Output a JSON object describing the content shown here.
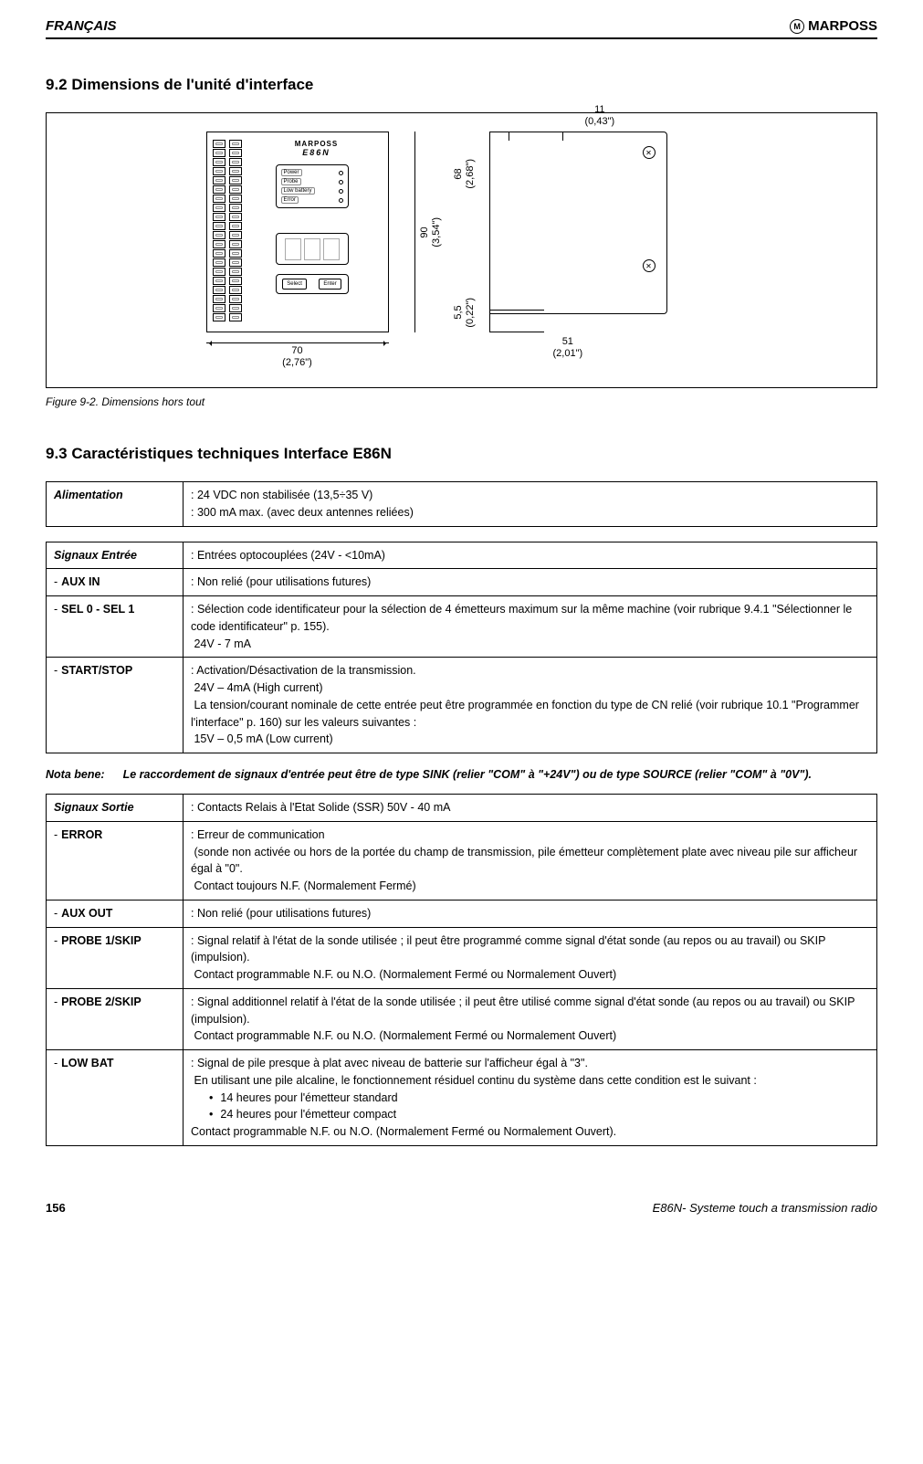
{
  "header": {
    "lang": "FRANÇAIS",
    "brand": "MARPOSS"
  },
  "section92": {
    "title": "9.2 Dimensions de l'unité d'interface",
    "caption": "Figure 9-2. Dimensions hors tout",
    "device_brand": "MARPOSS",
    "device_model": "E86N",
    "status_rows": [
      "Power",
      "Probe",
      "Low battery",
      "Error"
    ],
    "buttons": [
      "Select",
      "Enter"
    ],
    "dims": {
      "width": "70",
      "width_in": "(2,76\")",
      "height": "90",
      "height_in": "(3,54\")",
      "side_68": "68",
      "side_68_in": "(2,68\")",
      "side_55": "5,5",
      "side_55_in": "(0,22\")",
      "side_51": "51",
      "side_51_in": "(2,01\")",
      "side_11": "11",
      "side_11_in": "(0,43\")"
    }
  },
  "section93": {
    "title": "9.3 Caractéristiques techniques Interface E86N",
    "alimentation": {
      "label": "Alimentation",
      "line1": ": 24 VDC non stabilisée (13,5÷35 V)",
      "line2": ": 300 mA max. (avec deux antennes reliées)"
    },
    "signaux_entree": {
      "header_label": "Signaux Entrée",
      "header_val": ": Entrées optocouplées (24V - <10mA)",
      "aux_in": {
        "label": "AUX IN",
        "val": ": Non relié (pour utilisations futures)"
      },
      "sel": {
        "label": "SEL 0 - SEL 1",
        "line1": ": Sélection code identificateur pour la sélection de 4 émetteurs maximum sur la même machine (voir rubrique 9.4.1 \"Sélectionner le code identificateur\" p. 155).",
        "line2": "24V - 7 mA"
      },
      "startstop": {
        "label": "START/STOP",
        "line1": ": Activation/Désactivation de la transmission.",
        "line2": "24V – 4mA    (High current)",
        "line3": "La tension/courant nominale de cette entrée peut être programmée en fonction du type de CN relié (voir rubrique 10.1 \"Programmer l'interface\" p. 160) sur les valeurs suivantes :",
        "line4": "15V – 0,5 mA (Low current)"
      }
    },
    "nota": {
      "label": "Nota bene:",
      "text": "Le raccordement de signaux d'entrée peut être de type SINK  (relier \"COM\" à \"+24V\") ou de type SOURCE (relier \"COM\" à \"0V\")."
    },
    "signaux_sortie": {
      "header_label": "Signaux Sortie",
      "header_val": ": Contacts Relais à l'Etat Solide (SSR) 50V - 40 mA",
      "error": {
        "label": "ERROR",
        "line1": ": Erreur de communication",
        "line2": "(sonde non activée ou hors de la portée du champ de transmission, pile émetteur complètement plate avec niveau pile sur afficheur égal à \"0\".",
        "line3": "Contact toujours N.F. (Normalement Fermé)"
      },
      "aux_out": {
        "label": "AUX OUT",
        "val": ":  Non relié (pour utilisations futures)"
      },
      "probe1": {
        "label": "PROBE 1/SKIP",
        "line1": ": Signal relatif à l'état de la sonde utilisée ; il peut être programmé comme signal d'état sonde (au repos ou au travail) ou SKIP (impulsion).",
        "line2": "Contact programmable N.F. ou N.O. (Normalement Fermé ou Normalement Ouvert)"
      },
      "probe2": {
        "label": "PROBE 2/SKIP",
        "line1": ": Signal additionnel relatif à l'état de la sonde utilisée ; il peut être utilisé comme signal d'état sonde (au repos ou au travail) ou SKIP (impulsion).",
        "line2": "Contact programmable N.F. ou N.O. (Normalement Fermé ou Normalement Ouvert)"
      },
      "lowbat": {
        "label": "LOW  BAT",
        "line1": ": Signal de pile presque à plat avec niveau de batterie sur l'afficheur égal à  \"3\".",
        "line2": "En utilisant une pile alcaline, le fonctionnement résiduel continu du système dans cette condition est le suivant :",
        "bullet1": "14 heures pour l'émetteur standard",
        "bullet2": "24 heures pour l'émetteur compact",
        "line3": "Contact programmable N.F. ou N.O. (Normalement Fermé ou Normalement Ouvert)."
      }
    }
  },
  "footer": {
    "page": "156",
    "title": "E86N- Systeme touch a transmission radio"
  }
}
